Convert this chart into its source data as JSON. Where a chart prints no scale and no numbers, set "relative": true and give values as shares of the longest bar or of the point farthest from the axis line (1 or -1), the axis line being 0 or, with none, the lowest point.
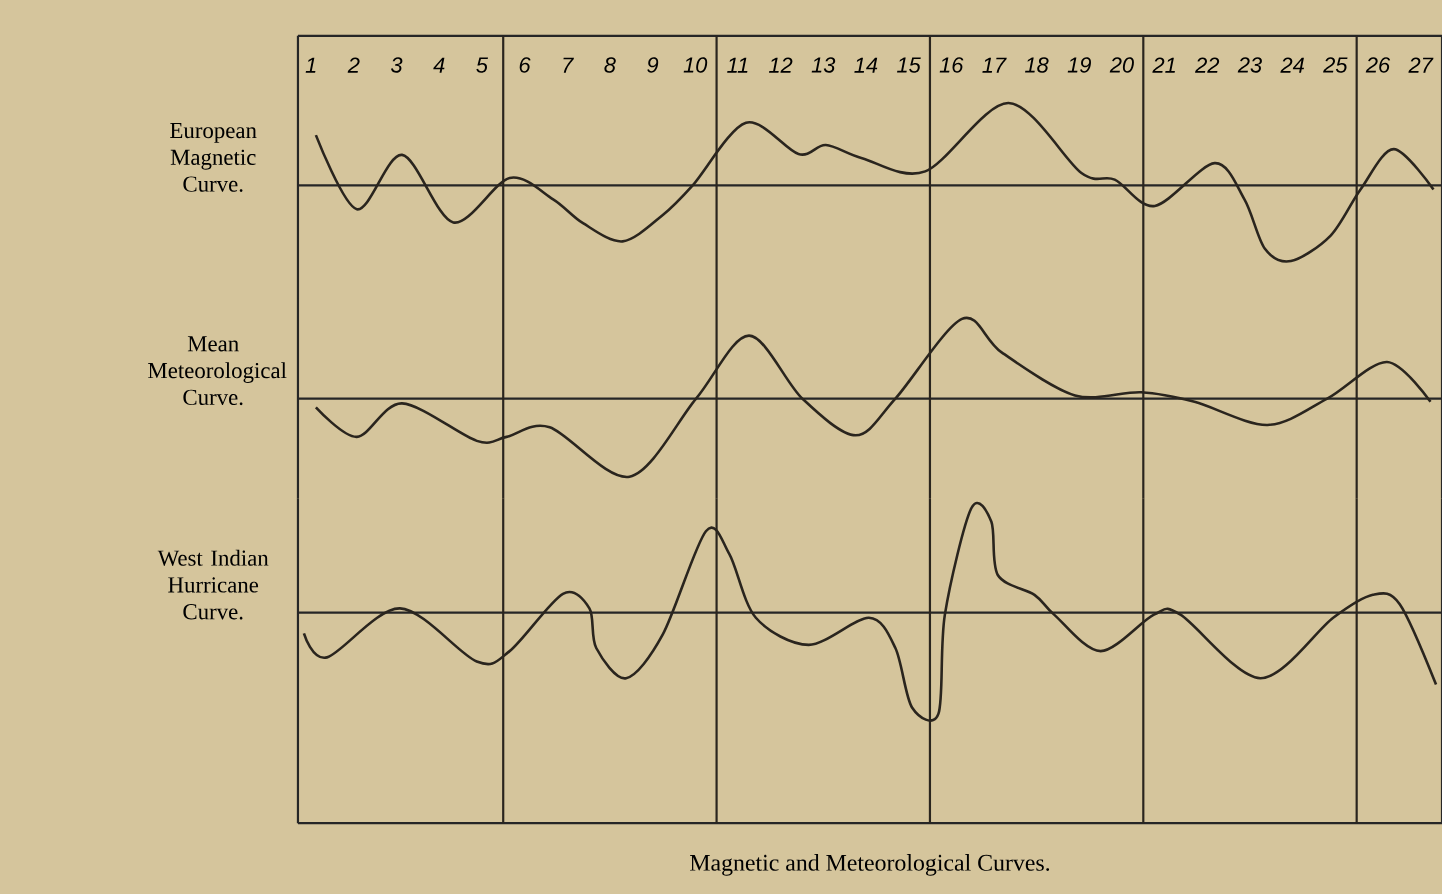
{
  "chart_data": [
    {
      "type": "line",
      "relative": true,
      "tick_labels": "x",
      "xlim": [
        0.69,
        27.5
      ],
      "xticks": [
        1,
        2,
        3,
        4,
        5,
        6,
        7,
        8,
        9,
        10,
        11,
        12,
        13,
        14,
        15,
        16,
        17,
        18,
        19,
        20,
        21,
        22,
        23,
        24,
        25,
        26,
        27
      ],
      "x": [
        1.11,
        2.07,
        3.13,
        4.33,
        5.65,
        6.67,
        7.37,
        8.3,
        9.24,
        9.94,
        11.19,
        12.42,
        13.06,
        13.91,
        15.39,
        17.34,
        19.05,
        19.83,
        20.77,
        22.17,
        22.87,
        23.35,
        23.96,
        24.89,
        25.59,
        26.37,
        27.3
      ],
      "series": [
        {
          "name": "European Magnetic Curve.",
          "color": "#2a251e",
          "values": [
            0.61,
            -0.29,
            0.37,
            -0.45,
            0.09,
            -0.17,
            -0.46,
            -0.68,
            -0.36,
            0,
            0.76,
            0.38,
            0.49,
            0.33,
            0.17,
            1,
            0.15,
            0.07,
            -0.25,
            0.27,
            -0.17,
            -0.77,
            -0.92,
            -0.61,
            -0.05,
            0.44,
            -0.05
          ]
        }
      ],
      "ref_lines": [
        {
          "axis": "x",
          "value": 5.5,
          "color": "#2a251e"
        },
        {
          "axis": "x",
          "value": 10.5,
          "color": "#2a251e"
        },
        {
          "axis": "x",
          "value": 15.5,
          "color": "#2a251e"
        },
        {
          "axis": "x",
          "value": 20.5,
          "color": "#2a251e"
        },
        {
          "axis": "x",
          "value": 25.5,
          "color": "#2a251e"
        }
      ]
    },
    {
      "type": "line",
      "relative": true,
      "tick_labels": false,
      "xlim": [
        0.69,
        27.5
      ],
      "xticks": [
        1,
        2,
        3,
        4,
        5,
        6,
        7,
        8,
        9,
        10,
        11,
        12,
        13,
        14,
        15,
        16,
        17,
        18,
        19,
        20,
        21,
        22,
        23,
        24,
        25,
        26,
        27
      ],
      "x": [
        1.11,
        2.07,
        3.13,
        4.88,
        5.58,
        6.59,
        8.46,
        10.02,
        11.26,
        12.51,
        13.76,
        14.69,
        16.25,
        17.18,
        18.9,
        20.45,
        21.7,
        23.41,
        24.81,
        26.21,
        27.23
      ],
      "series": [
        {
          "name": "Mean Meteorological Curve.",
          "color": "#2a251e",
          "values": [
            -0.11,
            -0.48,
            -0.06,
            -0.53,
            -0.48,
            -0.36,
            -0.98,
            0,
            0.79,
            0,
            -0.46,
            0,
            1,
            0.58,
            0.04,
            0.08,
            -0.04,
            -0.33,
            0,
            0.46,
            -0.04
          ]
        }
      ],
      "ref_lines": [
        {
          "axis": "x",
          "value": 5.5,
          "color": "#2a251e"
        },
        {
          "axis": "x",
          "value": 10.5,
          "color": "#2a251e"
        },
        {
          "axis": "x",
          "value": 15.5,
          "color": "#2a251e"
        },
        {
          "axis": "x",
          "value": 20.5,
          "color": "#2a251e"
        },
        {
          "axis": "x",
          "value": 25.5,
          "color": "#2a251e"
        }
      ]
    },
    {
      "type": "line",
      "relative": true,
      "tick_labels": false,
      "xlim": [
        0.69,
        27.5
      ],
      "xticks": [
        1,
        2,
        3,
        4,
        5,
        6,
        7,
        8,
        9,
        10,
        11,
        12,
        13,
        14,
        15,
        16,
        17,
        18,
        19,
        20,
        21,
        22,
        23,
        24,
        25,
        26,
        27
      ],
      "x": [
        0.83,
        1.37,
        3.08,
        4.88,
        5.65,
        6.9,
        7.52,
        7.68,
        8.38,
        9.24,
        10.25,
        10.8,
        11.42,
        12.66,
        14.07,
        14.69,
        15.08,
        15.7,
        15.85,
        16.47,
        16.94,
        17.09,
        17.95,
        18.41,
        19.5,
        20.75,
        21.37,
        23.24,
        24.95,
        25.88,
        26.51,
        27.36
      ],
      "series": [
        {
          "name": "West Indian Hurricane Curve.",
          "color": "#2a251e",
          "values": [
            -0.2,
            -0.43,
            0.04,
            -0.47,
            -0.37,
            0.18,
            0.04,
            -0.34,
            -0.63,
            -0.21,
            0.78,
            0.56,
            -0.05,
            -0.31,
            -0.05,
            -0.34,
            -0.91,
            -0.97,
            -0.02,
            1,
            0.87,
            0.36,
            0.17,
            -0.02,
            -0.37,
            -0.02,
            -0.02,
            -0.63,
            -0.05,
            0.17,
            0.08,
            -0.69
          ]
        }
      ],
      "ref_lines": [
        {
          "axis": "x",
          "value": 5.5,
          "color": "#2a251e"
        },
        {
          "axis": "x",
          "value": 10.5,
          "color": "#2a251e"
        },
        {
          "axis": "x",
          "value": 15.5,
          "color": "#2a251e"
        },
        {
          "axis": "x",
          "value": 20.5,
          "color": "#2a251e"
        },
        {
          "axis": "x",
          "value": 25.5,
          "color": "#2a251e"
        }
      ],
      "annotations": [
        "Magnetic and Meteorological Curves."
      ]
    }
  ]
}
